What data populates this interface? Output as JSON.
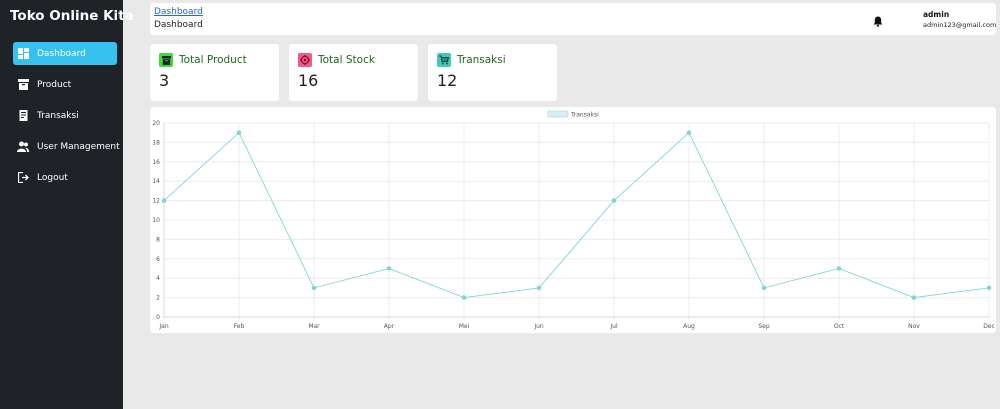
{
  "sidebar": {
    "brand": "Toko Online Kita",
    "items": [
      {
        "label": "Dashboard",
        "icon": "dashboard-icon",
        "active": true
      },
      {
        "label": "Product",
        "icon": "archive-icon",
        "active": false
      },
      {
        "label": "Transaksi",
        "icon": "receipt-icon",
        "active": false
      },
      {
        "label": "User Management",
        "icon": "users-icon",
        "active": false
      },
      {
        "label": "Logout",
        "icon": "logout-icon",
        "active": false
      }
    ]
  },
  "header": {
    "breadcrumb_link": "Dashboard",
    "page_title": "Dashboard",
    "user_name": "admin",
    "user_email": "admin123@gmail.com"
  },
  "cards": [
    {
      "title": "Total Product",
      "value": "3",
      "icon": "box-icon",
      "icon_bg": "#3ddc3a"
    },
    {
      "title": "Total Stock",
      "value": "16",
      "icon": "stock-icon",
      "icon_bg": "#ef5b86"
    },
    {
      "title": "Transaksi",
      "value": "12",
      "icon": "cart-icon",
      "icon_bg": "#43c9b8"
    }
  ],
  "chart_data": {
    "type": "line",
    "categories": [
      "Jan",
      "Feb",
      "Mar",
      "Apr",
      "Mei",
      "Jun",
      "Jul",
      "Aug",
      "Sep",
      "Oct",
      "Nov",
      "Dec"
    ],
    "series": [
      {
        "name": "Transaksi",
        "values": [
          12,
          19,
          3,
          5,
          2,
          3,
          12,
          19,
          3,
          5,
          2,
          3
        ]
      }
    ],
    "ylim": [
      0,
      20
    ],
    "yticks": [
      0,
      2,
      4,
      6,
      8,
      10,
      12,
      14,
      16,
      18,
      20
    ],
    "grid": true,
    "legend": "top-center",
    "line_color": "#7fd6d4"
  }
}
